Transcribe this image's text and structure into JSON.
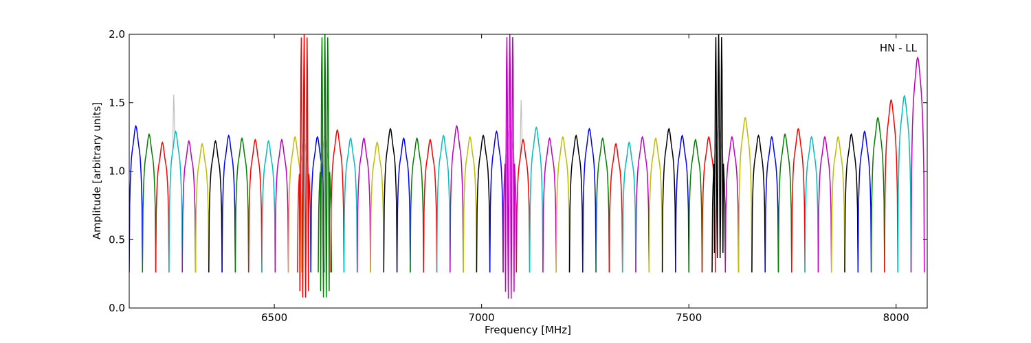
{
  "chart_data": {
    "type": "line",
    "title": "",
    "xlabel": "Frequency [MHz]",
    "ylabel": "Amplitude [arbitrary units]",
    "annotation": "HN - LL",
    "xlim": [
      6150,
      8075
    ],
    "ylim": [
      0.0,
      2.0
    ],
    "xticks": [
      {
        "value": 6500,
        "label": "6500"
      },
      {
        "value": 7000,
        "label": "7000"
      },
      {
        "value": 7500,
        "label": "7500"
      },
      {
        "value": 8000,
        "label": "8000"
      }
    ],
    "yticks": [
      {
        "value": 0.0,
        "label": "0.0"
      },
      {
        "value": 0.5,
        "label": "0.5"
      },
      {
        "value": 1.0,
        "label": "1.0"
      },
      {
        "value": 1.5,
        "label": "1.5"
      },
      {
        "value": 2.0,
        "label": "2.0"
      }
    ],
    "grid": false,
    "legend": false,
    "channel_width_mhz": 32,
    "color_cycle": [
      "#0000ff",
      "#008000",
      "#ff0000",
      "#00bfbf",
      "#bf00bf",
      "#bfbf00",
      "#000000"
    ],
    "background_trace_color": "#c0c0c0",
    "channels": [
      {
        "start": 6150,
        "peak": 1.3
      },
      {
        "start": 6182,
        "peak": 1.24
      },
      {
        "start": 6214,
        "peak": 1.18
      },
      {
        "start": 6246,
        "peak": 1.26,
        "spike": 1.56
      },
      {
        "start": 6278,
        "peak": 1.19
      },
      {
        "start": 6310,
        "peak": 1.17
      },
      {
        "start": 6342,
        "peak": 1.19
      },
      {
        "start": 6374,
        "peak": 1.23
      },
      {
        "start": 6406,
        "peak": 1.21
      },
      {
        "start": 6438,
        "peak": 1.2
      },
      {
        "start": 6470,
        "peak": 1.19
      },
      {
        "start": 6502,
        "peak": 1.2
      },
      {
        "start": 6534,
        "peak": 1.22
      },
      {
        "start": 6556,
        "peak": 1.2,
        "rfi_color": "#ff0000",
        "rfi_min": 0.07,
        "rfi_max": 2.0
      },
      {
        "start": 6588,
        "peak": 1.22
      },
      {
        "start": 6606,
        "peak": 1.22,
        "rfi_color": "#008000",
        "rfi_min": 0.07,
        "rfi_max": 2.0
      },
      {
        "start": 6636,
        "peak": 1.27
      },
      {
        "start": 6668,
        "peak": 1.21
      },
      {
        "start": 6700,
        "peak": 1.21
      },
      {
        "start": 6732,
        "peak": 1.18
      },
      {
        "start": 6764,
        "peak": 1.28
      },
      {
        "start": 6796,
        "peak": 1.21
      },
      {
        "start": 6828,
        "peak": 1.21
      },
      {
        "start": 6860,
        "peak": 1.2
      },
      {
        "start": 6892,
        "peak": 1.23
      },
      {
        "start": 6924,
        "peak": 1.3
      },
      {
        "start": 6956,
        "peak": 1.22
      },
      {
        "start": 6988,
        "peak": 1.23
      },
      {
        "start": 7020,
        "peak": 1.26
      },
      {
        "start": 7052,
        "peak": 1.3,
        "rfi_color": "#bf00bf",
        "rfi_min": 0.06,
        "rfi_max": 2.0
      },
      {
        "start": 7084,
        "peak": 1.2,
        "spike": 1.52
      },
      {
        "start": 7116,
        "peak": 1.29
      },
      {
        "start": 7148,
        "peak": 1.21
      },
      {
        "start": 7180,
        "peak": 1.22
      },
      {
        "start": 7212,
        "peak": 1.23
      },
      {
        "start": 7244,
        "peak": 1.28
      },
      {
        "start": 7276,
        "peak": 1.21
      },
      {
        "start": 7308,
        "peak": 1.17
      },
      {
        "start": 7340,
        "peak": 1.18
      },
      {
        "start": 7372,
        "peak": 1.22
      },
      {
        "start": 7404,
        "peak": 1.21
      },
      {
        "start": 7436,
        "peak": 1.28
      },
      {
        "start": 7468,
        "peak": 1.23
      },
      {
        "start": 7500,
        "peak": 1.2
      },
      {
        "start": 7532,
        "peak": 1.22
      },
      {
        "start": 7556,
        "peak": 1.3,
        "rfi_color": "#000000",
        "rfi_min": 0.36,
        "rfi_max": 2.0
      },
      {
        "start": 7588,
        "peak": 1.22
      },
      {
        "start": 7620,
        "peak": 1.36
      },
      {
        "start": 7652,
        "peak": 1.23
      },
      {
        "start": 7684,
        "peak": 1.22
      },
      {
        "start": 7716,
        "peak": 1.24
      },
      {
        "start": 7748,
        "peak": 1.28
      },
      {
        "start": 7780,
        "peak": 1.22
      },
      {
        "start": 7812,
        "peak": 1.22
      },
      {
        "start": 7844,
        "peak": 1.22
      },
      {
        "start": 7876,
        "peak": 1.24
      },
      {
        "start": 7908,
        "peak": 1.26
      },
      {
        "start": 7940,
        "peak": 1.36
      },
      {
        "start": 7972,
        "peak": 1.49
      },
      {
        "start": 8004,
        "peak": 1.52
      },
      {
        "start": 8036,
        "peak": 1.8
      }
    ]
  }
}
